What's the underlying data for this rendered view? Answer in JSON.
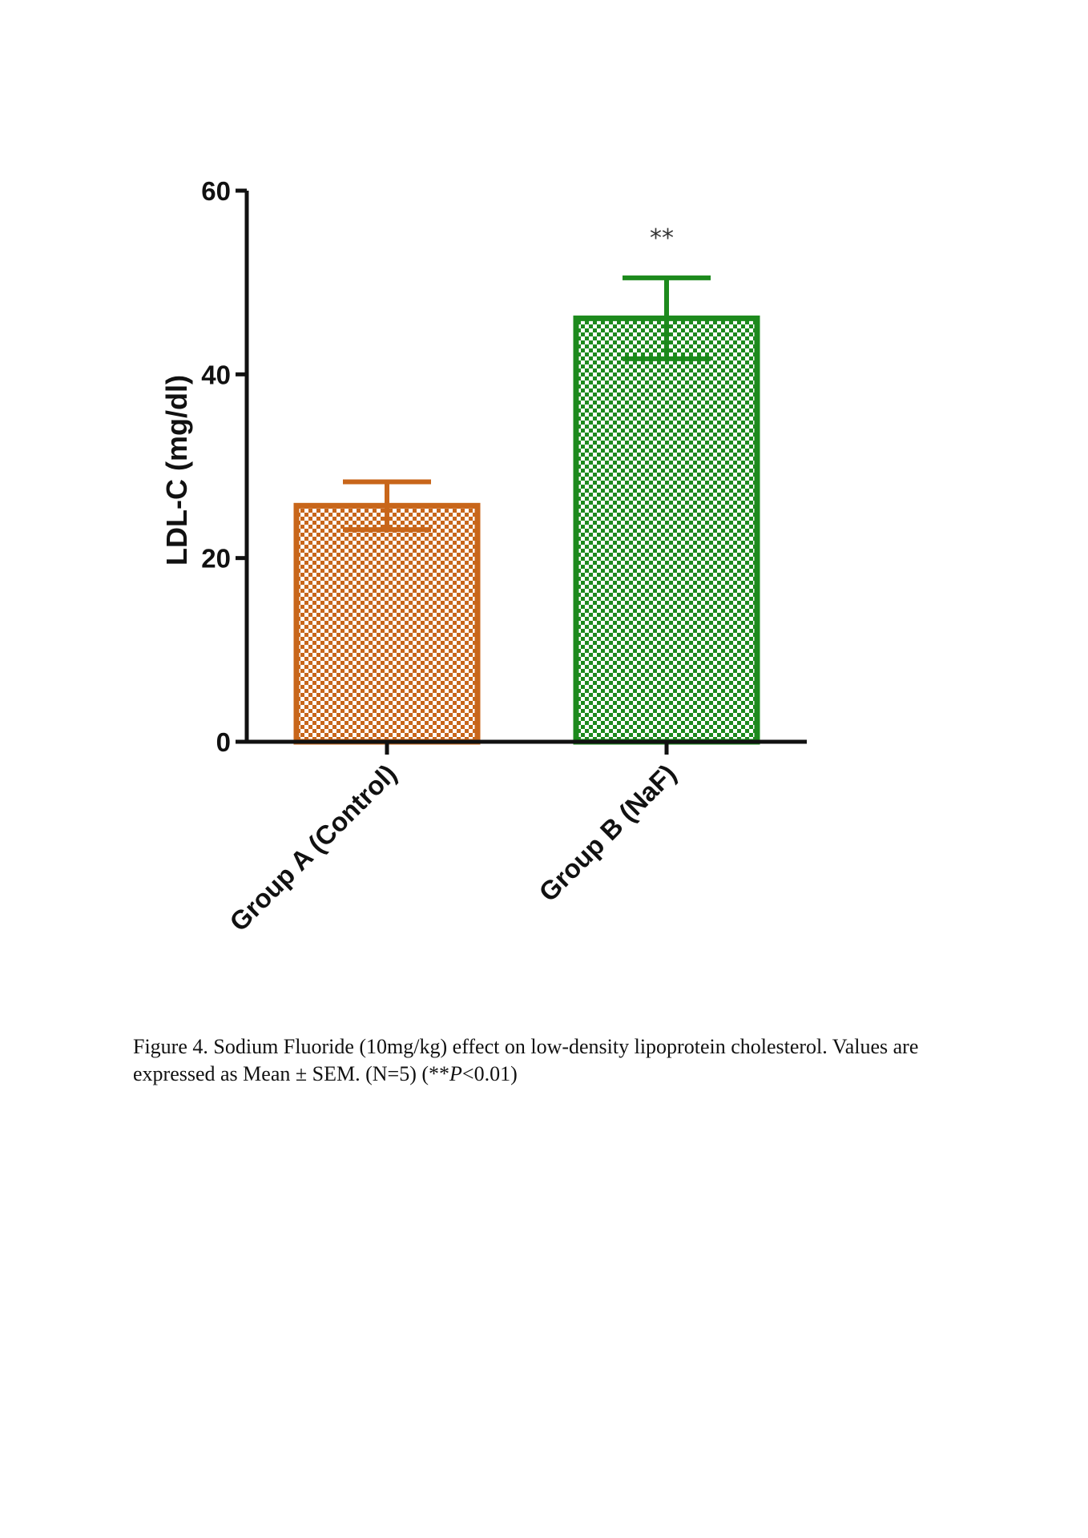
{
  "chart_data": {
    "type": "bar",
    "categories": [
      "Group A (Control)",
      "Group B (NaF)"
    ],
    "values": [
      25.7,
      46.1
    ],
    "errors": [
      2.6,
      4.4
    ],
    "colors": [
      "#c8661a",
      "#1d8a1d"
    ],
    "significance": [
      "",
      "**"
    ],
    "ylabel": "LDL-C (mg/dl)",
    "ylim": [
      0,
      60
    ],
    "yticks": [
      "0",
      "20",
      "40",
      "60"
    ],
    "ytick_values": [
      0,
      20,
      40,
      60
    ],
    "grid": false
  },
  "caption": {
    "text": "Figure 4. Sodium Fluoride (10mg/kg) effect on low-density lipoprotein cholesterol. Values are expressed as Mean ± SEM. (N=5) (**",
    "pval_symbol": "P",
    "tail": "<0.01)"
  }
}
